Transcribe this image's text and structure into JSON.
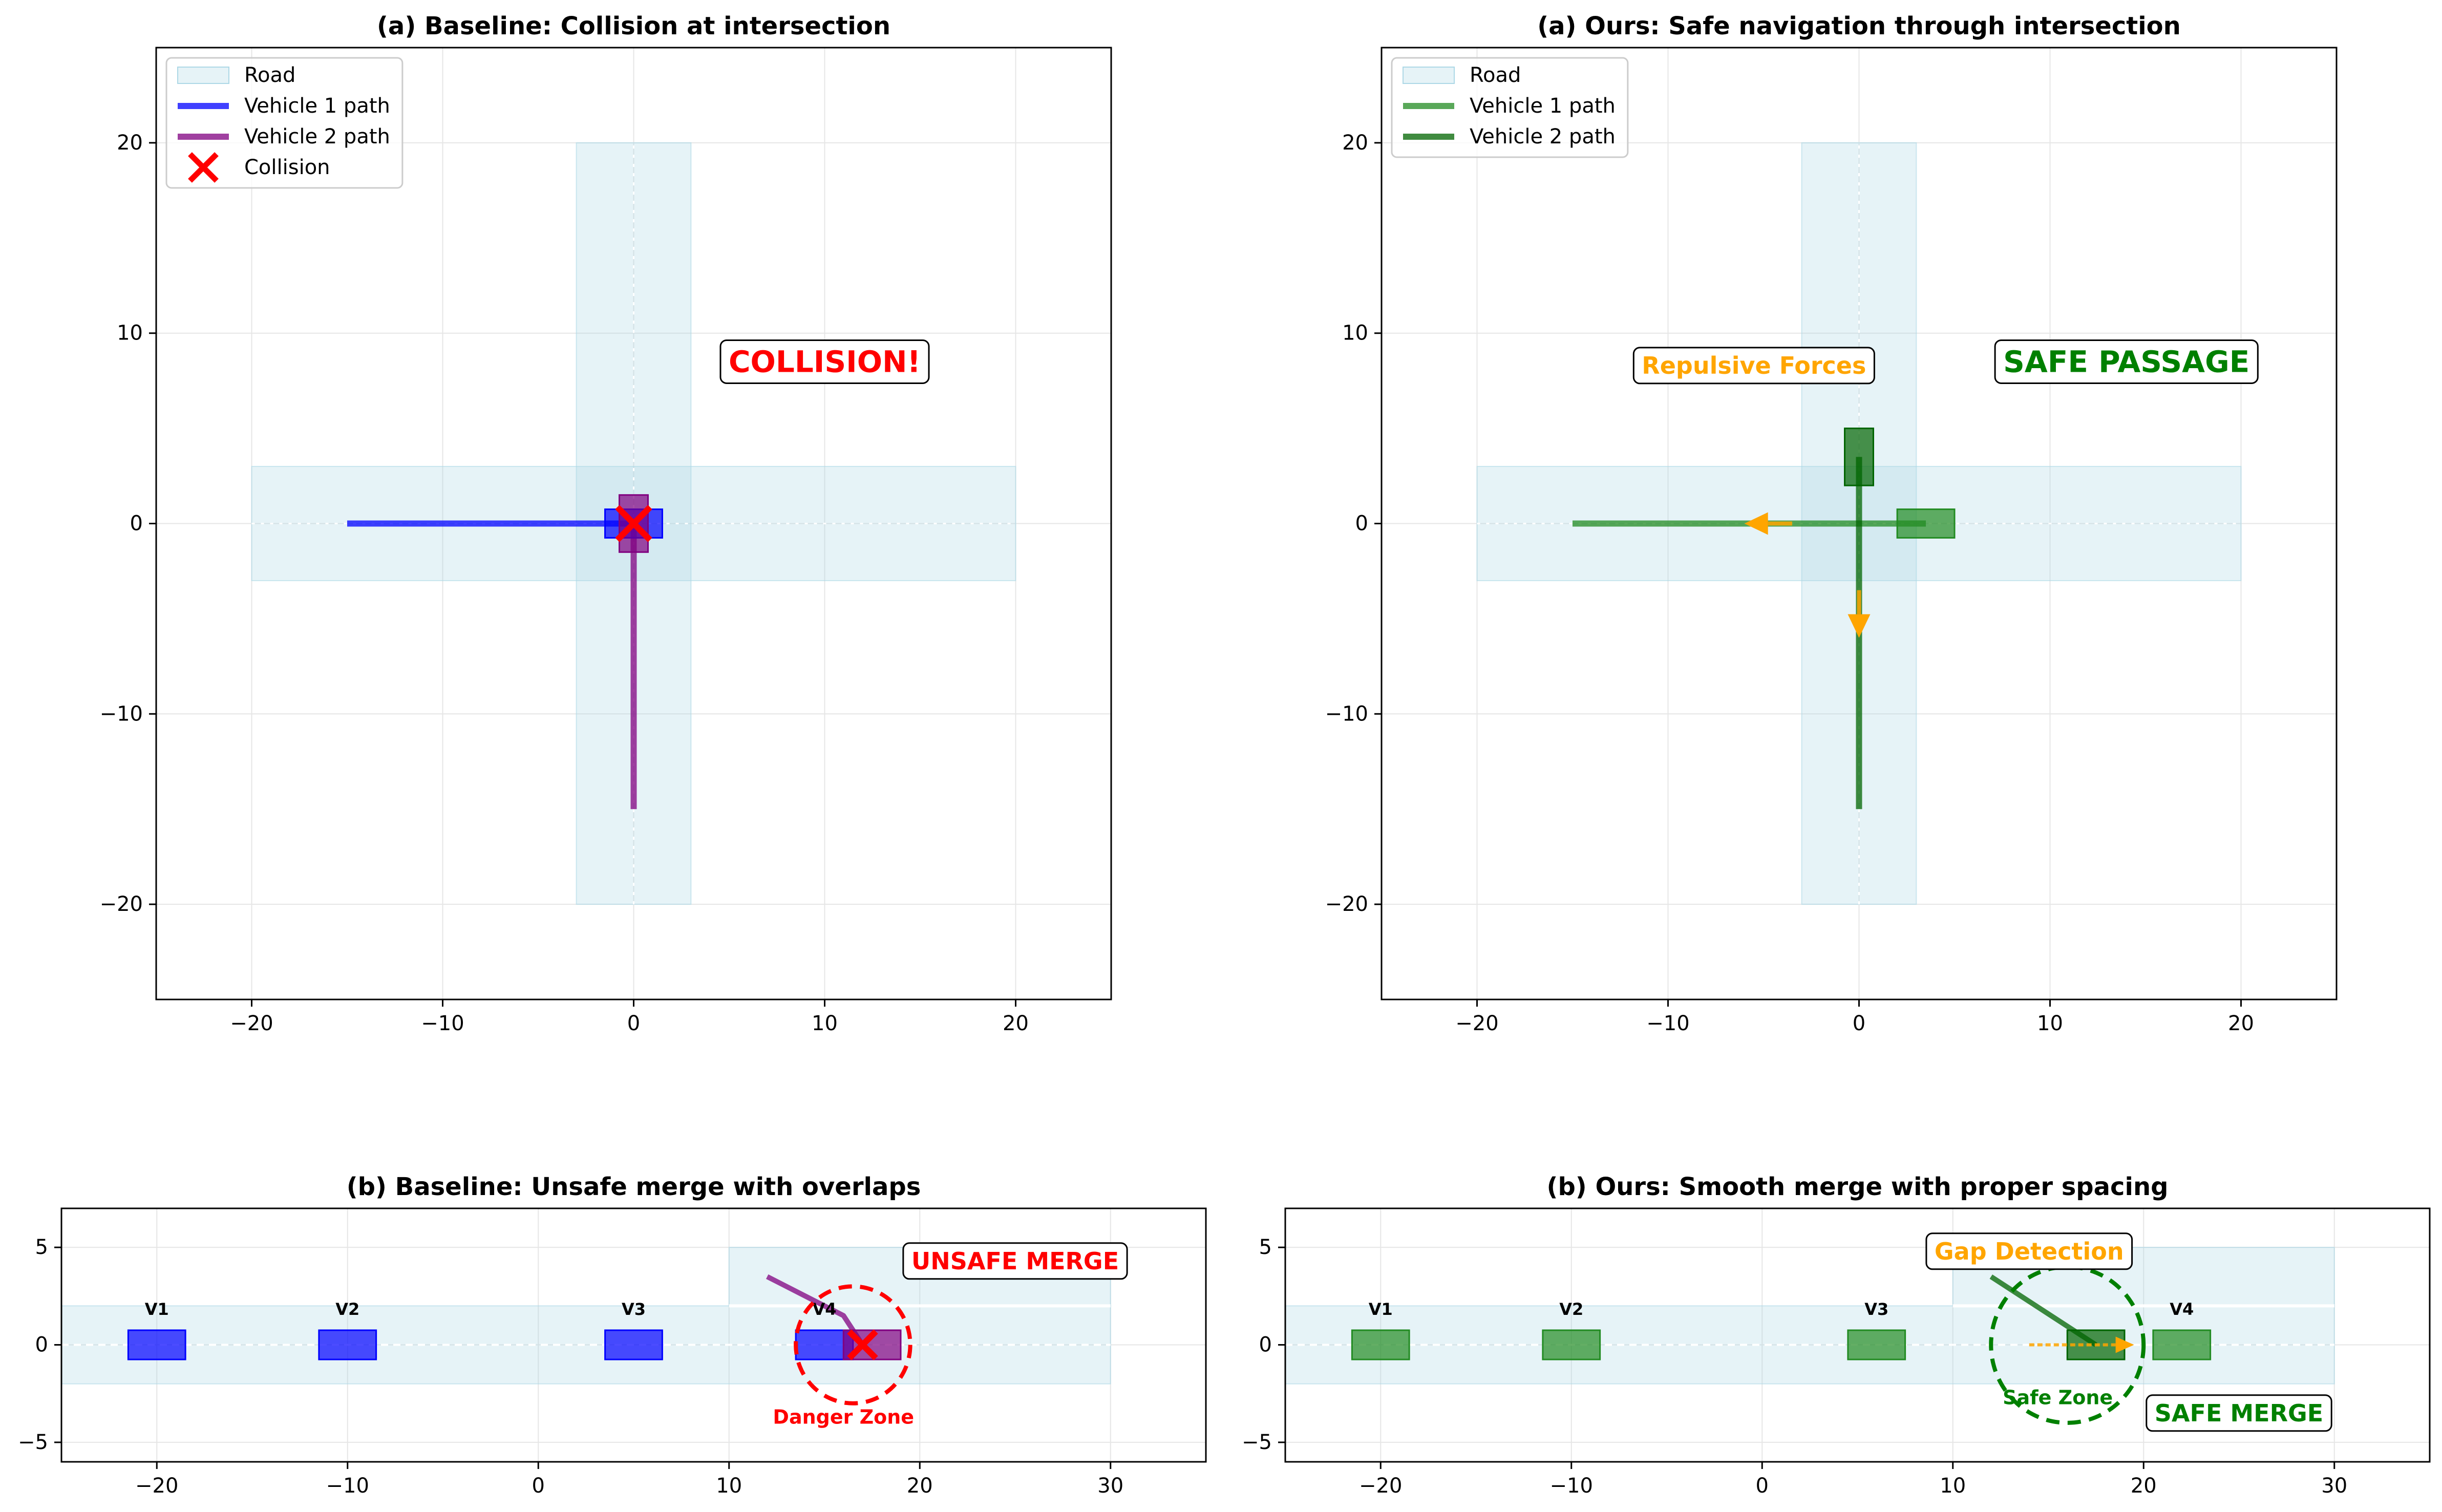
{
  "colors": {
    "road": "#add8e6",
    "baseline_v1": "#0000ff",
    "baseline_v2": "#800080",
    "collision": "#ff0000",
    "ours_v1": "#228b22",
    "ours_v2": "#006400",
    "force": "#ffa500",
    "safe_text": "#008000",
    "grid": "#e6e6e6"
  },
  "chart_data": [
    {
      "type": "line",
      "title": "(a) Baseline: Collision at intersection",
      "xlim": [
        -25,
        25
      ],
      "ylim": [
        -25,
        25
      ],
      "xticks": [
        -20,
        -10,
        0,
        10,
        20
      ],
      "yticks": [
        -20,
        -10,
        0,
        10,
        20
      ],
      "grid": true,
      "legend_placement": "top-left",
      "legend": [
        "Road",
        "Vehicle 1 path",
        "Vehicle 2 path",
        "Collision"
      ],
      "roads": [
        {
          "x": [
            -20,
            20
          ],
          "y": [
            -3,
            3
          ]
        },
        {
          "x": [
            -3,
            3
          ],
          "y": [
            -20,
            20
          ]
        }
      ],
      "series": [
        {
          "name": "Vehicle 1 path",
          "color": "#0000ff",
          "x": [
            -15,
            0
          ],
          "y": [
            0,
            0
          ]
        },
        {
          "name": "Vehicle 2 path",
          "color": "#800080",
          "x": [
            0,
            0
          ],
          "y": [
            -15,
            0
          ]
        }
      ],
      "vehicles": [
        {
          "cx": 0,
          "cy": 0,
          "w": 3,
          "h": 1.5,
          "color": "#0000ff"
        },
        {
          "cx": 0,
          "cy": 0,
          "w": 1.5,
          "h": 3,
          "color": "#800080"
        }
      ],
      "markers": [
        {
          "name": "Collision",
          "x": 0,
          "y": 0
        }
      ],
      "annotations": [
        {
          "text": "COLLISION!",
          "x": 10,
          "y": 8.5,
          "color": "#ff0000",
          "size": "large"
        }
      ]
    },
    {
      "type": "line",
      "title": "(a) Ours: Safe navigation through intersection",
      "xlim": [
        -25,
        25
      ],
      "ylim": [
        -25,
        25
      ],
      "xticks": [
        -20,
        -10,
        0,
        10,
        20
      ],
      "yticks": [
        -20,
        -10,
        0,
        10,
        20
      ],
      "grid": true,
      "legend_placement": "top-left",
      "legend": [
        "Road",
        "Vehicle 1 path",
        "Vehicle 2 path"
      ],
      "roads": [
        {
          "x": [
            -20,
            20
          ],
          "y": [
            -3,
            3
          ]
        },
        {
          "x": [
            -3,
            3
          ],
          "y": [
            -20,
            20
          ]
        }
      ],
      "series": [
        {
          "name": "Vehicle 1 path",
          "color": "#228b22",
          "x": [
            -15,
            3.5
          ],
          "y": [
            0,
            0
          ]
        },
        {
          "name": "Vehicle 2 path",
          "color": "#006400",
          "x": [
            0,
            0
          ],
          "y": [
            -15,
            3.5
          ]
        }
      ],
      "vehicles": [
        {
          "cx": 3.5,
          "cy": 0,
          "w": 3,
          "h": 1.5,
          "color": "#228b22"
        },
        {
          "cx": 0,
          "cy": 3.5,
          "w": 1.5,
          "h": 3,
          "color": "#006400"
        }
      ],
      "arrows": [
        {
          "x1": -3.5,
          "y1": 0,
          "x2": -6,
          "y2": 0,
          "color": "#ffa500"
        },
        {
          "x1": 0,
          "y1": -3.5,
          "x2": 0,
          "y2": -6,
          "color": "#ffa500"
        }
      ],
      "annotations": [
        {
          "text": "Repulsive Forces",
          "x": -5.5,
          "y": 8.3,
          "color": "#ffa500",
          "size": "medium"
        },
        {
          "text": "SAFE PASSAGE",
          "x": 14,
          "y": 8.5,
          "color": "#008000",
          "size": "large"
        }
      ]
    },
    {
      "type": "line",
      "title": "(b) Baseline: Unsafe merge with overlaps",
      "xlim": [
        -25,
        35
      ],
      "ylim": [
        -6,
        7
      ],
      "xticks": [
        -20,
        -10,
        0,
        10,
        20,
        30
      ],
      "yticks": [
        -5,
        0,
        5
      ],
      "grid": true,
      "roads": [
        {
          "x": [
            -25,
            30
          ],
          "y": [
            -2,
            2
          ]
        },
        {
          "x": [
            10,
            30
          ],
          "y": [
            2,
            5
          ]
        }
      ],
      "lane_line": {
        "x": [
          -25,
          30
        ],
        "y": 0
      },
      "ramp_line": {
        "x": [
          10,
          30
        ],
        "y": 2
      },
      "vehicles": [
        {
          "label": "V1",
          "cx": -20,
          "cy": 0,
          "w": 3,
          "h": 1.5,
          "color": "#0000ff"
        },
        {
          "label": "V2",
          "cx": -10,
          "cy": 0,
          "w": 3,
          "h": 1.5,
          "color": "#0000ff"
        },
        {
          "label": "V3",
          "cx": 5,
          "cy": 0,
          "w": 3,
          "h": 1.5,
          "color": "#0000ff"
        },
        {
          "label": "V4",
          "cx": 15,
          "cy": 0,
          "w": 3,
          "h": 1.5,
          "color": "#0000ff"
        },
        {
          "cx": 17.5,
          "cy": 0,
          "w": 3,
          "h": 1.5,
          "color": "#800080"
        }
      ],
      "series": [
        {
          "color": "#800080",
          "x": [
            12,
            16,
            17
          ],
          "y": [
            3.5,
            1.5,
            0
          ]
        }
      ],
      "markers": [
        {
          "x": 17,
          "y": 0
        }
      ],
      "circle": {
        "cx": 16.5,
        "cy": 0,
        "r": 3,
        "color": "#ff0000"
      },
      "annotations": [
        {
          "text": "UNSAFE MERGE",
          "x": 25,
          "y": 4.3,
          "color": "#ff0000",
          "size": "medium",
          "box": true
        },
        {
          "text": "Danger Zone",
          "x": 16,
          "y": -3.7,
          "color": "#ff0000",
          "size": "small",
          "box": false
        }
      ]
    },
    {
      "type": "line",
      "title": "(b) Ours: Smooth merge with proper spacing",
      "xlim": [
        -25,
        35
      ],
      "ylim": [
        -6,
        7
      ],
      "xticks": [
        -20,
        -10,
        0,
        10,
        20,
        30
      ],
      "yticks": [
        -5,
        0,
        5
      ],
      "grid": true,
      "roads": [
        {
          "x": [
            -25,
            30
          ],
          "y": [
            -2,
            2
          ]
        },
        {
          "x": [
            10,
            30
          ],
          "y": [
            2,
            5
          ]
        }
      ],
      "lane_line": {
        "x": [
          -25,
          30
        ],
        "y": 0
      },
      "ramp_line": {
        "x": [
          10,
          30
        ],
        "y": 2
      },
      "vehicles": [
        {
          "label": "V1",
          "cx": -20,
          "cy": 0,
          "w": 3,
          "h": 1.5,
          "color": "#228b22"
        },
        {
          "label": "V2",
          "cx": -10,
          "cy": 0,
          "w": 3,
          "h": 1.5,
          "color": "#228b22"
        },
        {
          "label": "V3",
          "cx": 6,
          "cy": 0,
          "w": 3,
          "h": 1.5,
          "color": "#228b22"
        },
        {
          "label": "V4",
          "cx": 22,
          "cy": 0,
          "w": 3,
          "h": 1.5,
          "color": "#228b22"
        },
        {
          "cx": 17.5,
          "cy": 0,
          "w": 3,
          "h": 1.5,
          "color": "#006400"
        }
      ],
      "series": [
        {
          "color": "#006400",
          "x": [
            12,
            17.5
          ],
          "y": [
            3.5,
            0
          ]
        }
      ],
      "arrows": [
        {
          "x1": 14,
          "y1": 0,
          "x2": 19.5,
          "y2": 0,
          "color": "#ffa500",
          "dashed": true
        }
      ],
      "circle": {
        "cx": 16,
        "cy": 0,
        "r": 4,
        "color": "#008000"
      },
      "annotations": [
        {
          "text": "Gap Detection",
          "x": 14,
          "y": 4.8,
          "color": "#ffa500",
          "size": "medium",
          "box": true
        },
        {
          "text": "Safe Zone",
          "x": 15.5,
          "y": -2.7,
          "color": "#008000",
          "size": "small",
          "box": false
        },
        {
          "text": "SAFE MERGE",
          "x": 25,
          "y": -3.5,
          "color": "#008000",
          "size": "medium",
          "box": true
        }
      ]
    }
  ]
}
